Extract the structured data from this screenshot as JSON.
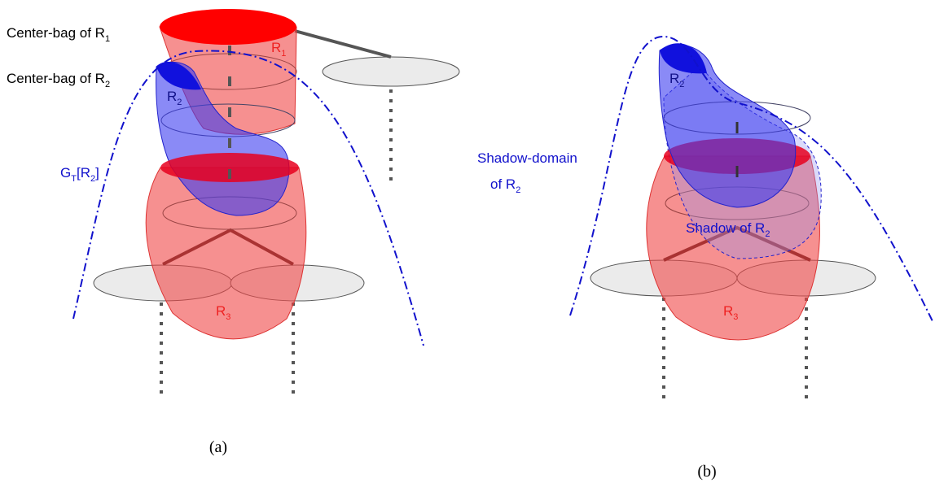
{
  "panels": [
    {
      "caption": "(a)",
      "labels": [
        {
          "parts": [
            {
              "text": "Center-bag of R"
            },
            {
              "sub": "1"
            }
          ]
        },
        {
          "parts": [
            {
              "text": "Center-bag of R"
            },
            {
              "sub": "2"
            }
          ]
        },
        {
          "parts": [
            {
              "text": "R"
            },
            {
              "sub": "1"
            }
          ]
        },
        {
          "parts": [
            {
              "text": "R"
            },
            {
              "sub": "2"
            }
          ]
        },
        {
          "parts": [
            {
              "text": "G"
            },
            {
              "sub": "T"
            },
            {
              "text": "[R"
            },
            {
              "sub": "2"
            },
            {
              "text": "]"
            }
          ]
        },
        {
          "parts": [
            {
              "text": "R"
            },
            {
              "sub": "3"
            }
          ]
        }
      ]
    },
    {
      "caption": "(b)",
      "labels": [
        {
          "parts": [
            {
              "text": "R"
            },
            {
              "sub": "2"
            }
          ]
        },
        {
          "parts": [
            {
              "text": "Shadow-domain"
            },
            {
              "text": "of R"
            },
            {
              "sub": "2"
            }
          ]
        },
        {
          "parts": [
            {
              "text": "Shadow of R"
            },
            {
              "sub": "2"
            }
          ]
        },
        {
          "parts": [
            {
              "text": "R"
            },
            {
              "sub": "3"
            }
          ]
        }
      ]
    }
  ]
}
